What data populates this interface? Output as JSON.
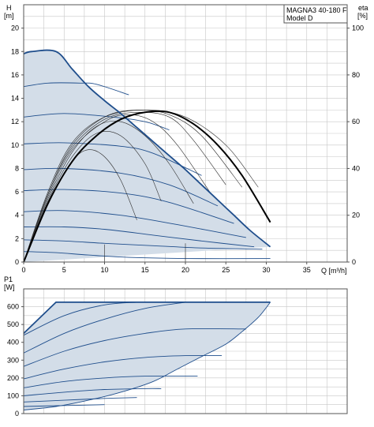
{
  "chart_data": [
    {
      "type": "line",
      "title": "MAGNA3 40-180 F",
      "subtitle": "Model D",
      "ylabel": "H",
      "yunit": "[m]",
      "y2label": "eta",
      "y2unit": "[%]",
      "xlabel": "Q [m³/h]",
      "xlim": [
        0,
        40
      ],
      "ylim": [
        0,
        22
      ],
      "y2lim": [
        0,
        110
      ],
      "xticks": [
        0,
        5,
        10,
        15,
        20,
        25,
        30,
        35
      ],
      "yticks": [
        0,
        2,
        4,
        6,
        8,
        10,
        12,
        14,
        16,
        18,
        20
      ],
      "y2ticks": [
        0,
        20,
        40,
        60,
        80,
        100
      ],
      "grid": true,
      "legend": "none",
      "colors": {
        "curve": "#1f4e8c",
        "fill": "#d3dde8",
        "eta": "#000000",
        "thin": "#2b2b2b",
        "grid": "#c7c7c7"
      },
      "envelope": {
        "x": [
          0,
          1,
          4,
          6,
          8,
          10,
          12,
          14,
          16,
          18,
          20,
          22,
          24,
          26,
          28,
          30.5
        ],
        "y": [
          17.8,
          18,
          18,
          16.5,
          15,
          13.8,
          12.7,
          11.5,
          10.3,
          9.1,
          7.9,
          6.6,
          5.3,
          4.0,
          2.7,
          1.3
        ]
      },
      "envelope_bottom": {
        "x": [
          0,
          30.5
        ],
        "y": [
          0,
          1.3
        ]
      },
      "qh_curves": [
        {
          "x": [
            0,
            3,
            7,
            9,
            13
          ],
          "y": [
            15,
            15.3,
            15.3,
            15.2,
            14.3
          ]
        },
        {
          "x": [
            0,
            5,
            11,
            15,
            18
          ],
          "y": [
            12.4,
            12.7,
            12.4,
            12,
            11.3
          ]
        },
        {
          "x": [
            0,
            5,
            12,
            16,
            22
          ],
          "y": [
            10.1,
            10.2,
            9.9,
            9.3,
            7.4
          ]
        },
        {
          "x": [
            0,
            5,
            12,
            18,
            24
          ],
          "y": [
            7.9,
            8,
            7.6,
            6.6,
            4.8
          ]
        },
        {
          "x": [
            0,
            5,
            12,
            18,
            26
          ],
          "y": [
            6.1,
            6.2,
            5.9,
            5.1,
            3.3
          ]
        },
        {
          "x": [
            0,
            5,
            12,
            19,
            27.5
          ],
          "y": [
            4.3,
            4.4,
            4.0,
            3.2,
            2.1
          ]
        },
        {
          "x": [
            0,
            5,
            10,
            16,
            22,
            28.5
          ],
          "y": [
            3.0,
            3.0,
            2.8,
            2.3,
            1.8,
            1.3
          ]
        },
        {
          "x": [
            0,
            5,
            10,
            16,
            22,
            29.5
          ],
          "y": [
            1.9,
            1.8,
            1.6,
            1.4,
            1.2,
            1.1
          ]
        },
        {
          "x": [
            0,
            4,
            8,
            13,
            20,
            30.5
          ],
          "y": [
            0.9,
            0.8,
            0.6,
            0.4,
            0.3,
            0.3
          ]
        }
      ],
      "eta_curves": [
        {
          "x": [
            0,
            3,
            6,
            8,
            10,
            12,
            14
          ],
          "y": [
            0,
            25,
            43,
            48,
            45,
            35,
            18
          ]
        },
        {
          "x": [
            0,
            3,
            6,
            9,
            12,
            15,
            17
          ],
          "y": [
            0,
            26,
            45,
            55,
            54,
            42,
            26
          ]
        },
        {
          "x": [
            0,
            3,
            6,
            9,
            12,
            15,
            18,
            21
          ],
          "y": [
            0,
            27,
            47,
            58,
            60,
            54,
            42,
            25
          ]
        },
        {
          "x": [
            0,
            3,
            6,
            10,
            13,
            16,
            19,
            23
          ],
          "y": [
            0,
            28,
            48,
            60,
            63,
            60,
            50,
            30
          ]
        },
        {
          "x": [
            0,
            3,
            6,
            10,
            14,
            18,
            21,
            25
          ],
          "y": [
            0,
            29,
            49,
            61,
            64,
            62,
            52,
            33
          ]
        },
        {
          "x": [
            0,
            3,
            6,
            10,
            14,
            18,
            22,
            27
          ],
          "y": [
            0,
            29,
            50,
            62,
            65,
            63,
            54,
            32
          ]
        },
        {
          "x": [
            0,
            3,
            6,
            10,
            15,
            20,
            25,
            29
          ],
          "y": [
            0,
            30,
            51,
            62,
            65,
            62,
            50,
            32
          ]
        }
      ],
      "eta_main": {
        "x": [
          0,
          3,
          6,
          9,
          12,
          15,
          18,
          21,
          24,
          27,
          30.5
        ],
        "y": [
          0,
          25,
          43,
          54,
          61,
          64,
          64,
          59,
          50,
          37,
          17
        ]
      },
      "verticals": [
        {
          "x": 10,
          "y": [
            0,
            1.5
          ]
        },
        {
          "x": 20,
          "y": [
            0,
            1.6
          ]
        }
      ]
    },
    {
      "type": "line",
      "ylabel": "P1",
      "yunit": "[W]",
      "xlim": [
        0,
        40
      ],
      "ylim": [
        0,
        700
      ],
      "yticks": [
        0,
        100,
        200,
        300,
        400,
        500,
        600
      ],
      "grid": true,
      "legend": "none",
      "envelope": {
        "x": [
          0,
          4,
          30.5,
          29,
          27,
          25,
          22,
          19,
          16,
          12,
          8,
          4,
          0
        ],
        "y": [
          450,
          625,
          625,
          540,
          460,
          390,
          320,
          250,
          180,
          120,
          75,
          40,
          20
        ]
      },
      "power_curves": [
        {
          "x": [
            0,
            5,
            10,
            14
          ],
          "y": [
            440,
            550,
            610,
            625
          ]
        },
        {
          "x": [
            0,
            5,
            10,
            15,
            20
          ],
          "y": [
            340,
            450,
            530,
            590,
            625
          ]
        },
        {
          "x": [
            0,
            5,
            10,
            15,
            20,
            27.5
          ],
          "y": [
            265,
            350,
            410,
            450,
            475,
            475
          ]
        },
        {
          "x": [
            0,
            5,
            10,
            15,
            20,
            24.5
          ],
          "y": [
            195,
            250,
            290,
            315,
            325,
            325
          ]
        },
        {
          "x": [
            0,
            5,
            10,
            15,
            20,
            21.5
          ],
          "y": [
            145,
            180,
            200,
            210,
            210,
            210
          ]
        },
        {
          "x": [
            0,
            5,
            10,
            15,
            17
          ],
          "y": [
            100,
            120,
            135,
            140,
            140
          ]
        },
        {
          "x": [
            0,
            5,
            10,
            14
          ],
          "y": [
            65,
            75,
            85,
            90
          ]
        },
        {
          "x": [
            0,
            5,
            10
          ],
          "y": [
            40,
            45,
            50
          ]
        }
      ]
    }
  ]
}
